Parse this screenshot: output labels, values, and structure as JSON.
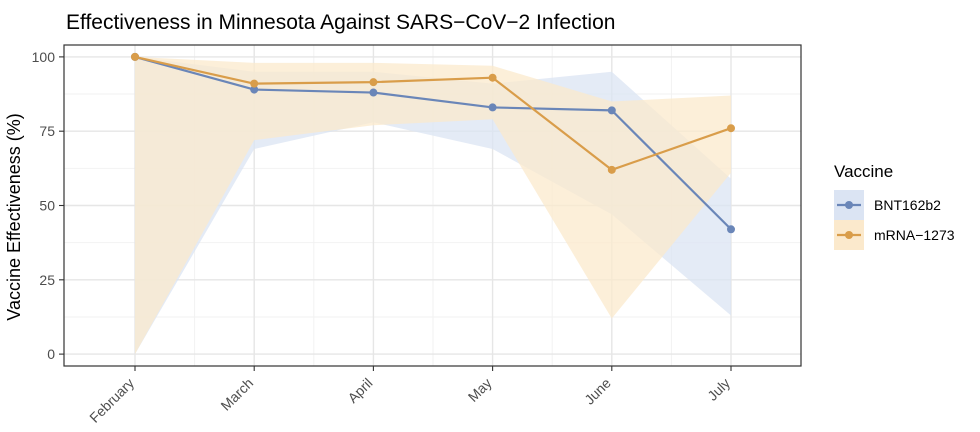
{
  "chart_data": {
    "type": "line",
    "title": "Effectiveness in Minnesota Against SARS−CoV−2 Infection",
    "xlabel": "",
    "ylabel": "Vaccine Effectiveness (%)",
    "ylim": [
      -4,
      104
    ],
    "yticks": [
      0,
      25,
      50,
      75,
      100
    ],
    "grid": true,
    "categories": [
      "February",
      "March",
      "April",
      "May",
      "June",
      "July"
    ],
    "legend_title": "Vaccine",
    "legend_position": "right",
    "series": [
      {
        "name": "BNT162b2",
        "color": "#6a86b8",
        "band_color": "#dbe4f3",
        "values": [
          100,
          89,
          88,
          83,
          82,
          42
        ],
        "lower": [
          0,
          69,
          78,
          69,
          47,
          13
        ],
        "upper": [
          100,
          95,
          95,
          91,
          95,
          59
        ]
      },
      {
        "name": "mRNA−1273",
        "color": "#d99d4a",
        "band_color": "#fbe9cc",
        "values": [
          100,
          91,
          91.5,
          93,
          62,
          76
        ],
        "lower": [
          0,
          72,
          77,
          79,
          12,
          61
        ],
        "upper": [
          100,
          98,
          98,
          97,
          85,
          87
        ]
      }
    ]
  }
}
